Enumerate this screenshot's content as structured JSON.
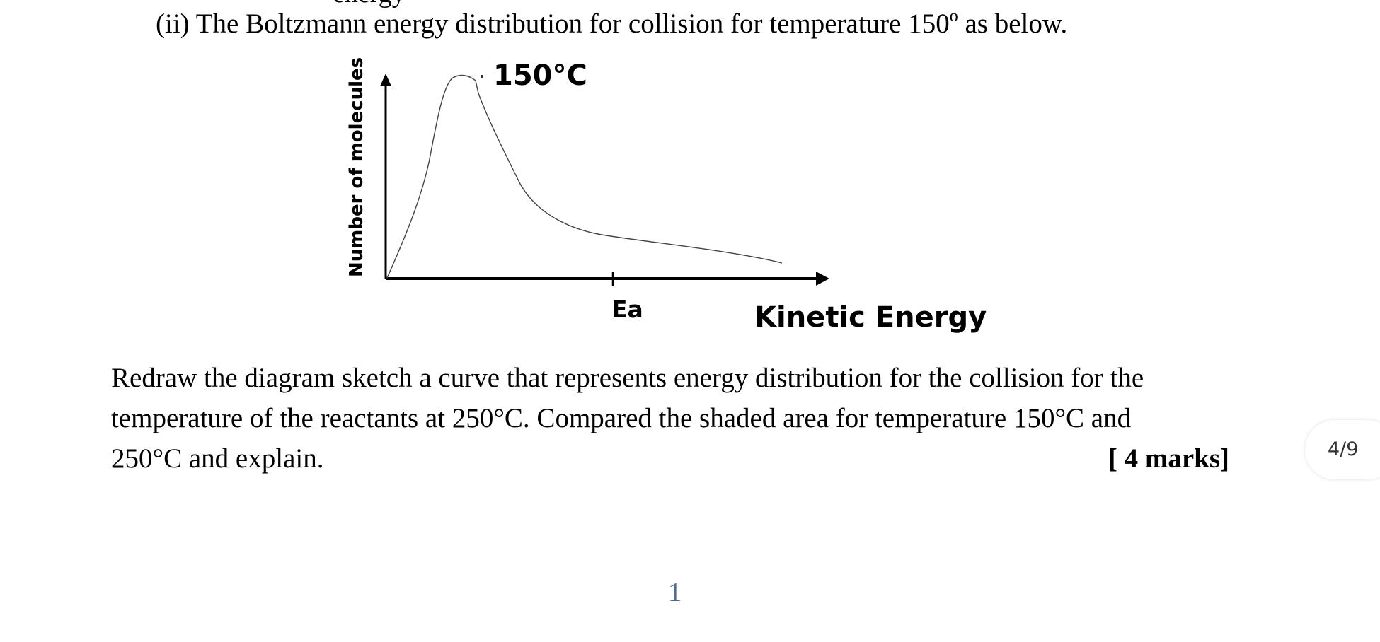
{
  "document": {
    "cut_text": "energy",
    "question": {
      "prefix": "(ii) The Boltzmann energy distribution for collision for temperature 150",
      "superscript": "o",
      "suffix": " as below."
    },
    "diagram": {
      "curve_label": "150°C",
      "y_axis_label": "Number of molecules",
      "x_tick_label": "Ea",
      "x_axis_label": "Kinetic Energy"
    },
    "instructions": {
      "line1": "Redraw the diagram sketch a curve that represents energy distribution for the collision for the",
      "line2": "temperature of the reactants at 250°C.  Compared the shaded area for temperature 150°C and",
      "line3": "250°C and explain.",
      "marks": "[ 4 marks]"
    },
    "page_number": "1"
  },
  "viewer": {
    "page_indicator": "4/9"
  }
}
